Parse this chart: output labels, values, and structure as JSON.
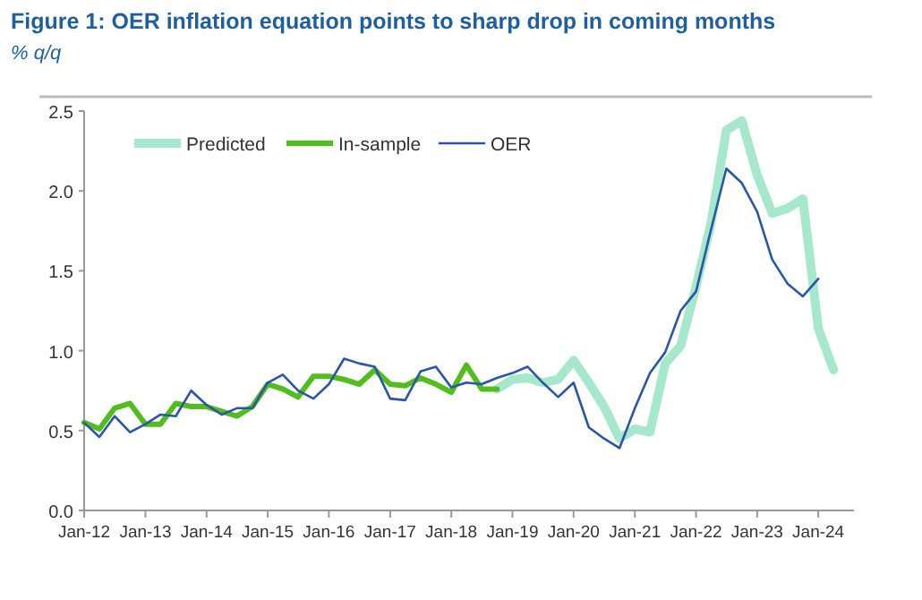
{
  "chart_data": {
    "type": "line",
    "title": "Figure 1: OER inflation equation points to sharp drop in coming months",
    "subtitle": "% q/q",
    "legend": "top",
    "grid": false,
    "marker": "none",
    "line_style": "solid",
    "xlim": [
      "2012-01",
      "2024-08"
    ],
    "xticks": [
      {
        "value": "2012-01",
        "label": "Jan-12"
      },
      {
        "value": "2013-01",
        "label": "Jan-13"
      },
      {
        "value": "2014-01",
        "label": "Jan-14"
      },
      {
        "value": "2015-01",
        "label": "Jan-15"
      },
      {
        "value": "2016-01",
        "label": "Jan-16"
      },
      {
        "value": "2017-01",
        "label": "Jan-17"
      },
      {
        "value": "2018-01",
        "label": "Jan-18"
      },
      {
        "value": "2019-01",
        "label": "Jan-19"
      },
      {
        "value": "2020-01",
        "label": "Jan-20"
      },
      {
        "value": "2021-01",
        "label": "Jan-21"
      },
      {
        "value": "2022-01",
        "label": "Jan-22"
      },
      {
        "value": "2023-01",
        "label": "Jan-23"
      },
      {
        "value": "2024-01",
        "label": "Jan-24"
      }
    ],
    "ylim": [
      0,
      2.5
    ],
    "yticks": [
      {
        "value": 0,
        "label": "0.0"
      },
      0.5,
      {
        "value": 1,
        "label": "1.0"
      },
      1.5,
      {
        "value": 2,
        "label": "2.0"
      },
      2.5
    ],
    "series": [
      {
        "name": "Predicted",
        "color": "#a6e8cc",
        "x": [
          "2018-10",
          "2019-01",
          "2019-04",
          "2019-07",
          "2019-10",
          "2020-01",
          "2020-04",
          "2020-07",
          "2020-10",
          "2021-01",
          "2021-04",
          "2021-07",
          "2021-10",
          "2022-01",
          "2022-04",
          "2022-07",
          "2022-10",
          "2023-01",
          "2023-04",
          "2023-07",
          "2023-10",
          "2024-01",
          "2024-04"
        ],
        "values": [
          0.76,
          0.82,
          0.83,
          0.8,
          0.82,
          0.94,
          0.8,
          0.65,
          0.45,
          0.51,
          0.49,
          0.92,
          1.03,
          1.4,
          1.8,
          2.38,
          2.44,
          2.1,
          1.86,
          1.89,
          1.95,
          1.14,
          0.88
        ]
      },
      {
        "name": "In-sample",
        "color": "#52bd1e",
        "x": [
          "2012-01",
          "2012-04",
          "2012-07",
          "2012-10",
          "2013-01",
          "2013-04",
          "2013-07",
          "2013-10",
          "2014-01",
          "2014-04",
          "2014-07",
          "2014-10",
          "2015-01",
          "2015-04",
          "2015-07",
          "2015-10",
          "2016-01",
          "2016-04",
          "2016-07",
          "2016-10",
          "2017-01",
          "2017-04",
          "2017-07",
          "2017-10",
          "2018-01",
          "2018-04",
          "2018-07",
          "2018-10"
        ],
        "values": [
          0.55,
          0.51,
          0.64,
          0.67,
          0.54,
          0.54,
          0.67,
          0.65,
          0.65,
          0.62,
          0.59,
          0.65,
          0.79,
          0.76,
          0.71,
          0.84,
          0.84,
          0.82,
          0.79,
          0.88,
          0.79,
          0.78,
          0.83,
          0.79,
          0.74,
          0.91,
          0.76,
          0.76
        ]
      },
      {
        "name": "OER",
        "color": "#2a56a8",
        "x": [
          "2012-01",
          "2012-04",
          "2012-07",
          "2012-10",
          "2013-01",
          "2013-04",
          "2013-07",
          "2013-10",
          "2014-01",
          "2014-04",
          "2014-07",
          "2014-10",
          "2015-01",
          "2015-04",
          "2015-07",
          "2015-10",
          "2016-01",
          "2016-04",
          "2016-07",
          "2016-10",
          "2017-01",
          "2017-04",
          "2017-07",
          "2017-10",
          "2018-01",
          "2018-04",
          "2018-07",
          "2018-10",
          "2019-01",
          "2019-04",
          "2019-07",
          "2019-10",
          "2020-01",
          "2020-04",
          "2020-07",
          "2020-10",
          "2021-01",
          "2021-04",
          "2021-07",
          "2021-10",
          "2022-01",
          "2022-04",
          "2022-07",
          "2022-10",
          "2023-01",
          "2023-04",
          "2023-07",
          "2023-10",
          "2024-01"
        ],
        "values": [
          0.55,
          0.46,
          0.59,
          0.49,
          0.54,
          0.6,
          0.59,
          0.75,
          0.66,
          0.6,
          0.64,
          0.64,
          0.8,
          0.85,
          0.75,
          0.7,
          0.79,
          0.95,
          0.92,
          0.9,
          0.7,
          0.69,
          0.87,
          0.9,
          0.77,
          0.8,
          0.79,
          0.83,
          0.86,
          0.9,
          0.8,
          0.71,
          0.8,
          0.52,
          0.45,
          0.39,
          0.64,
          0.86,
          0.99,
          1.25,
          1.37,
          1.76,
          2.14,
          2.05,
          1.87,
          1.57,
          1.42,
          1.34,
          1.45
        ]
      }
    ]
  }
}
